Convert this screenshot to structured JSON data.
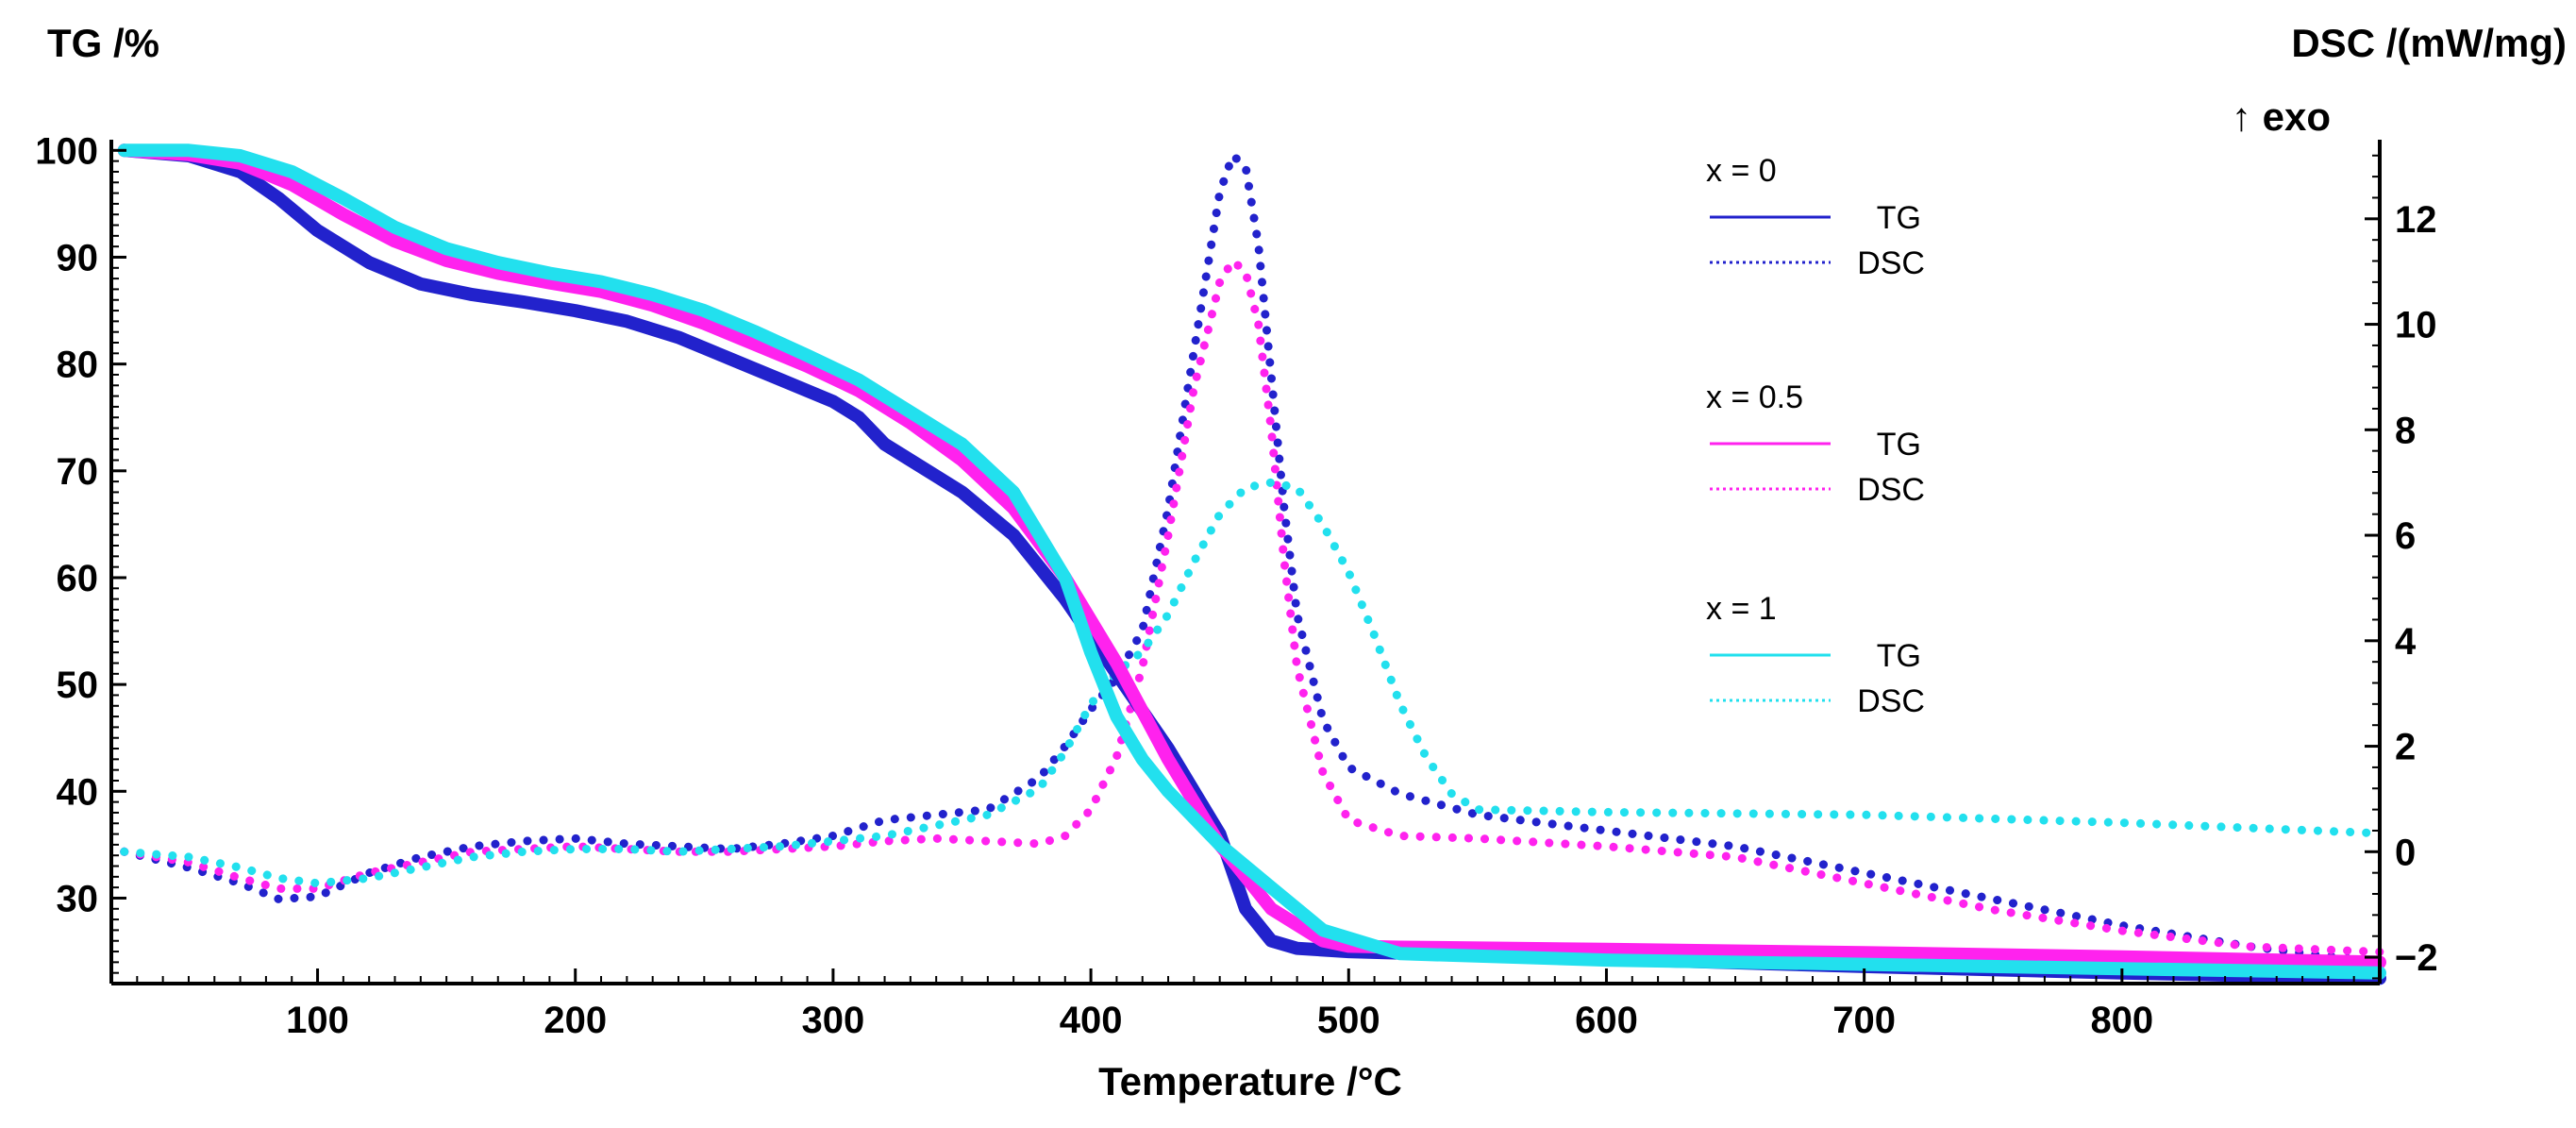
{
  "chart_data": {
    "type": "line",
    "xlabel": "Temperature /°C",
    "ylabel_left": "TG /%",
    "ylabel_right": "DSC /(mW/mg)",
    "right_annotation": "↑ exo",
    "xlim": [
      20,
      900
    ],
    "ylim_left": [
      22,
      101
    ],
    "ylim_right": [
      -2.5,
      13.5
    ],
    "x_ticks": [
      100,
      200,
      300,
      400,
      500,
      600,
      700,
      800
    ],
    "y_left_ticks": [
      30,
      40,
      50,
      60,
      70,
      80,
      90,
      100
    ],
    "y_right_ticks": [
      -2,
      0,
      2,
      4,
      6,
      8,
      10,
      12
    ],
    "grid": false,
    "legend": {
      "position": "top-right",
      "groups": [
        {
          "title": "x = 0",
          "tg_label": "TG",
          "dsc_label": "DSC",
          "color": "#2222cc"
        },
        {
          "title": "x = 0.5",
          "tg_label": "TG",
          "dsc_label": "DSC",
          "color": "#ff22ee"
        },
        {
          "title": "x = 1",
          "tg_label": "TG",
          "dsc_label": "DSC",
          "color": "#22e0ee"
        }
      ]
    },
    "series": [
      {
        "name": "x = 0 TG",
        "axis": "left",
        "style": "solid",
        "color": "#2222cc",
        "x": [
          25,
          50,
          70,
          85,
          100,
          120,
          140,
          160,
          180,
          200,
          220,
          240,
          260,
          280,
          300,
          310,
          320,
          330,
          350,
          370,
          390,
          410,
          430,
          450,
          460,
          470,
          480,
          500,
          600,
          700,
          800,
          900
        ],
        "y": [
          100,
          99.5,
          98,
          95.5,
          92.5,
          89.5,
          87.5,
          86.5,
          85.8,
          85,
          84,
          82.5,
          80.5,
          78.5,
          76.5,
          75,
          72.5,
          71,
          68,
          64,
          58,
          51,
          44,
          36,
          29,
          26,
          25.3,
          25,
          24.3,
          23.6,
          23,
          22.5
        ]
      },
      {
        "name": "x = 0.5 TG",
        "axis": "left",
        "style": "solid",
        "color": "#ff22ee",
        "x": [
          25,
          50,
          70,
          90,
          110,
          130,
          150,
          170,
          190,
          210,
          230,
          250,
          270,
          290,
          310,
          330,
          350,
          370,
          390,
          410,
          430,
          450,
          470,
          490,
          500,
          520,
          600,
          700,
          800,
          900
        ],
        "y": [
          100,
          99.6,
          98.8,
          96.8,
          94,
          91.5,
          89.7,
          88.5,
          87.6,
          86.8,
          85.5,
          83.8,
          81.8,
          79.8,
          77.5,
          74.5,
          71,
          66.5,
          60,
          52,
          43,
          35,
          29,
          26,
          25.5,
          25.4,
          25.2,
          24.9,
          24.5,
          24
        ]
      },
      {
        "name": "x = 1 TG",
        "axis": "left",
        "style": "solid",
        "color": "#22e0ee",
        "x": [
          25,
          50,
          70,
          90,
          110,
          130,
          150,
          170,
          190,
          210,
          230,
          250,
          270,
          290,
          310,
          330,
          350,
          370,
          390,
          400,
          410,
          420,
          430,
          450,
          470,
          490,
          520,
          600,
          700,
          800,
          900
        ],
        "y": [
          100,
          100,
          99.5,
          98,
          95.5,
          92.8,
          90.8,
          89.5,
          88.5,
          87.7,
          86.5,
          85,
          83,
          80.8,
          78.5,
          75.5,
          72.5,
          68,
          60,
          53,
          47,
          43,
          40,
          35,
          31,
          27,
          24.8,
          24.2,
          23.8,
          23.4,
          23
        ]
      },
      {
        "name": "x = 0 DSC",
        "axis": "right",
        "style": "dotted",
        "color": "#2222cc",
        "x": [
          25,
          50,
          70,
          85,
          100,
          120,
          140,
          160,
          180,
          200,
          220,
          240,
          260,
          280,
          300,
          320,
          340,
          360,
          380,
          390,
          400,
          410,
          420,
          430,
          440,
          450,
          455,
          460,
          465,
          470,
          475,
          480,
          490,
          500,
          520,
          550,
          600,
          650,
          700,
          750,
          800,
          850,
          900
        ],
        "y": [
          0,
          -0.3,
          -0.6,
          -0.9,
          -0.85,
          -0.4,
          -0.1,
          0.1,
          0.2,
          0.25,
          0.15,
          0.1,
          0.05,
          0.15,
          0.3,
          0.6,
          0.7,
          0.8,
          1.4,
          2,
          2.7,
          3.3,
          4.2,
          6.5,
          9.5,
          12.5,
          13.2,
          13,
          11.5,
          9,
          6.5,
          4.5,
          2.5,
          1.6,
          1.1,
          0.7,
          0.4,
          0.1,
          -0.4,
          -0.9,
          -1.4,
          -1.8,
          -2.1
        ]
      },
      {
        "name": "x = 0.5 DSC",
        "axis": "right",
        "style": "dotted",
        "color": "#ff22ee",
        "x": [
          25,
          50,
          70,
          85,
          100,
          120,
          140,
          160,
          180,
          200,
          220,
          240,
          260,
          280,
          300,
          320,
          340,
          360,
          380,
          390,
          400,
          410,
          420,
          430,
          440,
          450,
          455,
          460,
          465,
          470,
          475,
          480,
          490,
          500,
          520,
          550,
          600,
          650,
          700,
          750,
          800,
          850,
          900
        ],
        "y": [
          0,
          -0.2,
          -0.5,
          -0.7,
          -0.7,
          -0.4,
          -0.2,
          0,
          0.05,
          0.1,
          0.05,
          0,
          0,
          0.05,
          0.1,
          0.2,
          0.25,
          0.2,
          0.15,
          0.3,
          0.8,
          1.8,
          3.5,
          6,
          8.8,
          10.8,
          11.2,
          11,
          10,
          8,
          5.5,
          3.5,
          1.5,
          0.6,
          0.3,
          0.25,
          0.1,
          -0.1,
          -0.6,
          -1.1,
          -1.5,
          -1.8,
          -1.9
        ]
      },
      {
        "name": "x = 1 DSC",
        "axis": "right",
        "style": "dotted",
        "color": "#22e0ee",
        "x": [
          25,
          50,
          70,
          85,
          100,
          120,
          140,
          160,
          180,
          200,
          220,
          240,
          260,
          280,
          300,
          320,
          340,
          360,
          380,
          390,
          400,
          410,
          420,
          430,
          440,
          450,
          460,
          470,
          480,
          490,
          500,
          510,
          520,
          530,
          540,
          550,
          600,
          700,
          800,
          900
        ],
        "y": [
          0,
          -0.1,
          -0.3,
          -0.5,
          -0.6,
          -0.5,
          -0.3,
          -0.1,
          0,
          0.05,
          0.05,
          0,
          0.05,
          0.1,
          0.2,
          0.3,
          0.5,
          0.7,
          1.2,
          1.9,
          2.8,
          3.4,
          3.8,
          4.5,
          5.5,
          6.4,
          6.9,
          7,
          6.9,
          6.2,
          5.3,
          4.1,
          2.8,
          1.8,
          1.1,
          0.8,
          0.75,
          0.7,
          0.55,
          0.35
        ]
      }
    ]
  }
}
